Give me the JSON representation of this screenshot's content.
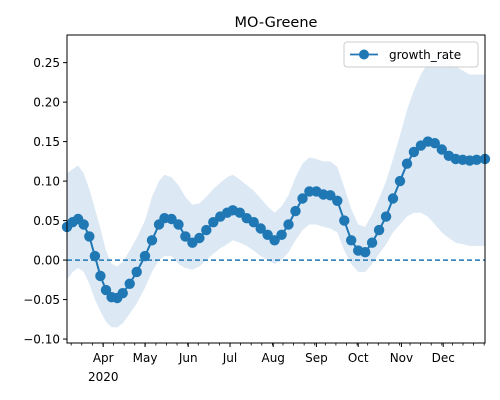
{
  "chart_data": {
    "type": "line",
    "title": "MO-Greene",
    "xlabel": "",
    "ylabel": "",
    "ylim": [
      -0.105,
      0.285
    ],
    "xlim": [
      "2020-03-06",
      "2020-12-31"
    ],
    "yticks": [
      -0.1,
      -0.05,
      0.0,
      0.05,
      0.1,
      0.15,
      0.2,
      0.25
    ],
    "ytick_labels": [
      "−0.10",
      "−0.05",
      "0.00",
      "0.05",
      "0.10",
      "0.15",
      "0.20",
      "0.25"
    ],
    "xticks": [
      {
        "date": "2020-04-01",
        "label": "Apr",
        "sublabel": "2020"
      },
      {
        "date": "2020-05-01",
        "label": "May",
        "sublabel": ""
      },
      {
        "date": "2020-06-01",
        "label": "Jun",
        "sublabel": ""
      },
      {
        "date": "2020-07-01",
        "label": "Jul",
        "sublabel": ""
      },
      {
        "date": "2020-08-01",
        "label": "Aug",
        "sublabel": ""
      },
      {
        "date": "2020-09-01",
        "label": "Sep",
        "sublabel": ""
      },
      {
        "date": "2020-10-01",
        "label": "Oct",
        "sublabel": ""
      },
      {
        "date": "2020-11-01",
        "label": "Nov",
        "sublabel": ""
      },
      {
        "date": "2020-12-01",
        "label": "Dec",
        "sublabel": ""
      }
    ],
    "legend": {
      "position": "top-right",
      "entries": [
        "growth_rate"
      ]
    },
    "reference_line": {
      "y": 0.0,
      "style": "dashed"
    },
    "grid": false,
    "colors": {
      "line": "#1f77b4",
      "band": "#dce8f4",
      "reference": "#1f77b4"
    },
    "series": [
      {
        "name": "growth_rate",
        "marker": "circle",
        "points": [
          [
            "2020-03-06",
            0.042,
            -0.025,
            0.11
          ],
          [
            "2020-03-10",
            0.048,
            -0.015,
            0.115
          ],
          [
            "2020-03-14",
            0.052,
            -0.01,
            0.12
          ],
          [
            "2020-03-18",
            0.045,
            -0.015,
            0.11
          ],
          [
            "2020-03-22",
            0.03,
            -0.03,
            0.09
          ],
          [
            "2020-03-26",
            0.005,
            -0.05,
            0.065
          ],
          [
            "2020-03-30",
            -0.02,
            -0.065,
            0.04
          ],
          [
            "2020-04-03",
            -0.038,
            -0.078,
            0.012
          ],
          [
            "2020-04-07",
            -0.047,
            -0.085,
            -0.005
          ],
          [
            "2020-04-11",
            -0.048,
            -0.085,
            -0.008
          ],
          [
            "2020-04-15",
            -0.042,
            -0.08,
            -0.002
          ],
          [
            "2020-04-20",
            -0.03,
            -0.068,
            0.012
          ],
          [
            "2020-04-25",
            -0.015,
            -0.055,
            0.028
          ],
          [
            "2020-05-01",
            0.005,
            -0.035,
            0.05
          ],
          [
            "2020-05-06",
            0.025,
            -0.015,
            0.08
          ],
          [
            "2020-05-11",
            0.045,
            0.0,
            0.1
          ],
          [
            "2020-05-15",
            0.053,
            0.005,
            0.108
          ],
          [
            "2020-05-20",
            0.052,
            0.005,
            0.105
          ],
          [
            "2020-05-25",
            0.045,
            -0.005,
            0.095
          ],
          [
            "2020-05-30",
            0.03,
            -0.01,
            0.08
          ],
          [
            "2020-06-04",
            0.022,
            -0.012,
            0.07
          ],
          [
            "2020-06-09",
            0.028,
            -0.008,
            0.072
          ],
          [
            "2020-06-14",
            0.038,
            0.0,
            0.08
          ],
          [
            "2020-06-19",
            0.048,
            0.008,
            0.09
          ],
          [
            "2020-06-24",
            0.055,
            0.015,
            0.098
          ],
          [
            "2020-06-29",
            0.06,
            0.02,
            0.105
          ],
          [
            "2020-07-03",
            0.063,
            0.025,
            0.108
          ],
          [
            "2020-07-08",
            0.06,
            0.022,
            0.102
          ],
          [
            "2020-07-13",
            0.053,
            0.018,
            0.095
          ],
          [
            "2020-07-18",
            0.048,
            0.012,
            0.088
          ],
          [
            "2020-07-23",
            0.04,
            0.005,
            0.078
          ],
          [
            "2020-07-28",
            0.032,
            0.0,
            0.068
          ],
          [
            "2020-08-02",
            0.025,
            -0.005,
            0.06
          ],
          [
            "2020-08-07",
            0.032,
            0.0,
            0.068
          ],
          [
            "2020-08-12",
            0.045,
            0.01,
            0.082
          ],
          [
            "2020-08-17",
            0.062,
            0.025,
            0.105
          ],
          [
            "2020-08-22",
            0.078,
            0.038,
            0.122
          ],
          [
            "2020-08-27",
            0.087,
            0.045,
            0.13
          ],
          [
            "2020-09-01",
            0.087,
            0.045,
            0.128
          ],
          [
            "2020-09-06",
            0.083,
            0.042,
            0.125
          ],
          [
            "2020-09-11",
            0.082,
            0.04,
            0.125
          ],
          [
            "2020-09-16",
            0.075,
            0.035,
            0.118
          ],
          [
            "2020-09-21",
            0.05,
            0.012,
            0.092
          ],
          [
            "2020-09-26",
            0.025,
            -0.005,
            0.065
          ],
          [
            "2020-10-01",
            0.012,
            -0.015,
            0.045
          ],
          [
            "2020-10-06",
            0.01,
            -0.015,
            0.042
          ],
          [
            "2020-10-11",
            0.022,
            -0.005,
            0.058
          ],
          [
            "2020-10-16",
            0.038,
            0.008,
            0.078
          ],
          [
            "2020-10-21",
            0.055,
            0.02,
            0.1
          ],
          [
            "2020-10-26",
            0.078,
            0.035,
            0.128
          ],
          [
            "2020-10-31",
            0.1,
            0.045,
            0.158
          ],
          [
            "2020-11-05",
            0.122,
            0.055,
            0.19
          ],
          [
            "2020-11-10",
            0.137,
            0.06,
            0.215
          ],
          [
            "2020-11-15",
            0.145,
            0.06,
            0.235
          ],
          [
            "2020-11-20",
            0.15,
            0.055,
            0.25
          ],
          [
            "2020-11-25",
            0.148,
            0.045,
            0.255
          ],
          [
            "2020-11-30",
            0.14,
            0.035,
            0.255
          ],
          [
            "2020-12-05",
            0.132,
            0.028,
            0.25
          ],
          [
            "2020-12-10",
            0.128,
            0.022,
            0.245
          ],
          [
            "2020-12-15",
            0.127,
            0.02,
            0.24
          ],
          [
            "2020-12-20",
            0.126,
            0.018,
            0.235
          ],
          [
            "2020-12-25",
            0.127,
            0.018,
            0.235
          ],
          [
            "2020-12-31",
            0.128,
            0.018,
            0.235
          ]
        ]
      }
    ]
  }
}
